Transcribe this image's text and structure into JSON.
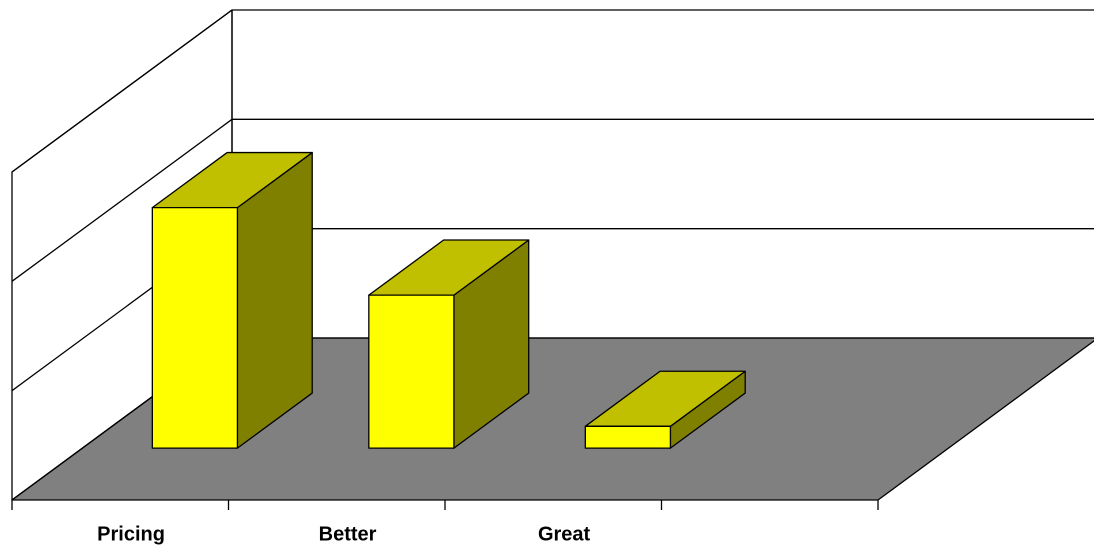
{
  "chart_data": {
    "type": "bar3d",
    "categories": [
      "Pricing",
      "Better",
      "Great",
      null
    ],
    "values": [
      2.2,
      1.4,
      0.2,
      null
    ],
    "ylim": [
      0,
      3
    ],
    "yticks": [
      0,
      1,
      2,
      3
    ],
    "grid": true,
    "colors": {
      "front": "#ffff00",
      "top": "#c0c000",
      "side": "#808000",
      "floor": "#808080"
    }
  }
}
